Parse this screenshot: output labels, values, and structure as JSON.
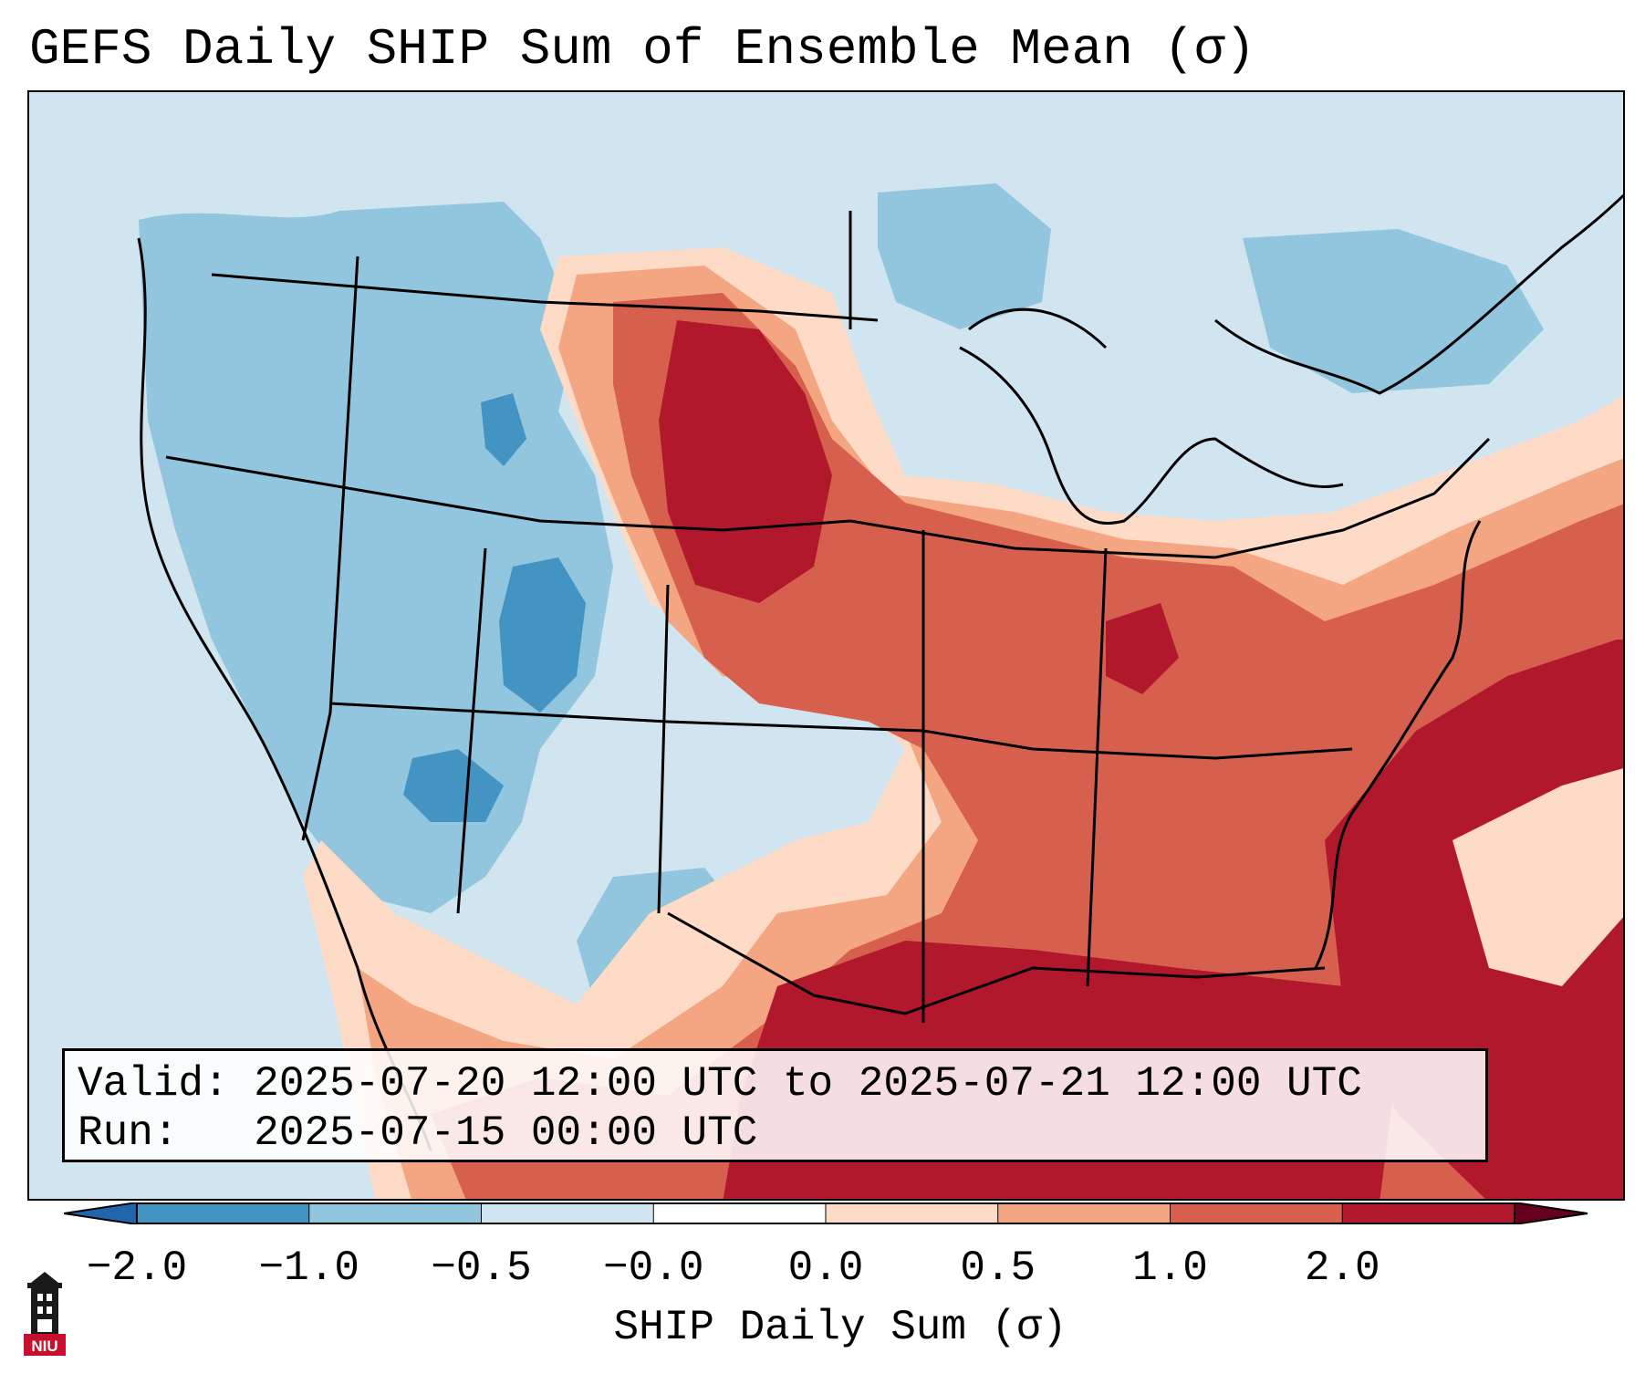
{
  "title": "GEFS Daily SHIP Sum of Ensemble Mean (σ)",
  "info": {
    "valid_label": "Valid:",
    "valid_value": "2025-07-20 12:00 UTC to 2025-07-21 12:00 UTC",
    "run_label": "Run:",
    "run_value": "2025-07-15 00:00 UTC"
  },
  "colorbar": {
    "label": "SHIP Daily Sum (σ)",
    "ticks": [
      "−2.0",
      "−1.0",
      "−0.5",
      "−0.0",
      "0.0",
      "0.5",
      "1.0",
      "2.0"
    ],
    "bin_colors": [
      "#4393c3",
      "#92c5de",
      "#d1e5f0",
      "#ffffff",
      "#fddbc7",
      "#f4a582",
      "#d6604d",
      "#b2182b"
    ],
    "under_color": "#2166ac",
    "over_color": "#67001f",
    "extend": "both"
  },
  "logo": {
    "text": "NIU",
    "icon": "niu-tower-icon"
  },
  "map": {
    "projection": "Lambert conformal",
    "region": "CONUS",
    "background_color": "#d1e5f0"
  }
}
